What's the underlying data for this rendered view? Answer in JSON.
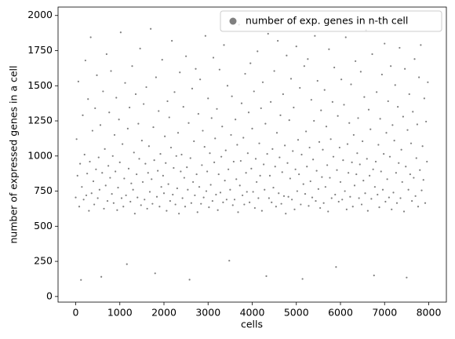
{
  "chart_data": {
    "type": "scatter",
    "xlabel": "cells",
    "ylabel": "number of expressed genes in a cell",
    "xlim": [
      -400,
      8400
    ],
    "ylim": [
      -40,
      2060
    ],
    "xticks": [
      0,
      1000,
      2000,
      3000,
      4000,
      5000,
      6000,
      7000,
      8000
    ],
    "yticks": [
      0,
      250,
      500,
      750,
      1000,
      1250,
      1500,
      1750,
      2000
    ],
    "legend": "upper right",
    "series": [
      {
        "name": "number of exp. genes in n-th cell",
        "color": "#808080",
        "x": [
          0,
          20,
          40,
          60,
          80,
          100,
          120,
          140,
          160,
          180,
          200,
          220,
          240,
          260,
          280,
          300,
          320,
          340,
          360,
          380,
          400,
          420,
          440,
          460,
          480,
          500,
          520,
          540,
          560,
          580,
          600,
          620,
          640,
          660,
          680,
          700,
          720,
          740,
          760,
          780,
          800,
          820,
          840,
          860,
          880,
          900,
          920,
          940,
          960,
          980,
          1000,
          1020,
          1040,
          1060,
          1080,
          1100,
          1120,
          1140,
          1160,
          1180,
          1200,
          1220,
          1240,
          1260,
          1280,
          1300,
          1320,
          1340,
          1360,
          1380,
          1400,
          1420,
          1440,
          1460,
          1480,
          1500,
          1520,
          1540,
          1560,
          1580,
          1600,
          1620,
          1640,
          1660,
          1680,
          1700,
          1720,
          1740,
          1760,
          1780,
          1800,
          1820,
          1840,
          1860,
          1880,
          1900,
          1920,
          1940,
          1960,
          1980,
          2000,
          2020,
          2040,
          2060,
          2080,
          2100,
          2120,
          2140,
          2160,
          2180,
          2200,
          2220,
          2240,
          2260,
          2280,
          2300,
          2320,
          2340,
          2360,
          2380,
          2400,
          2420,
          2440,
          2460,
          2480,
          2500,
          2520,
          2540,
          2560,
          2580,
          2600,
          2620,
          2640,
          2660,
          2680,
          2700,
          2720,
          2740,
          2760,
          2780,
          2800,
          2820,
          2840,
          2860,
          2880,
          2900,
          2920,
          2940,
          2960,
          2980,
          3000,
          3020,
          3040,
          3060,
          3080,
          3100,
          3120,
          3140,
          3160,
          3180,
          3200,
          3220,
          3240,
          3260,
          3280,
          3300,
          3320,
          3340,
          3360,
          3380,
          3400,
          3420,
          3440,
          3460,
          3480,
          3500,
          3520,
          3540,
          3560,
          3580,
          3600,
          3620,
          3640,
          3660,
          3680,
          3700,
          3720,
          3740,
          3760,
          3780,
          3800,
          3820,
          3840,
          3860,
          3880,
          3900,
          3920,
          3940,
          3960,
          3980,
          4000,
          4020,
          4040,
          4060,
          4080,
          4100,
          4120,
          4140,
          4160,
          4180,
          4200,
          4220,
          4240,
          4260,
          4280,
          4300,
          4320,
          4340,
          4360,
          4380,
          4400,
          4420,
          4440,
          4460,
          4480,
          4500,
          4520,
          4540,
          4560,
          4580,
          4600,
          4620,
          4640,
          4660,
          4680,
          4700,
          4720,
          4740,
          4760,
          4780,
          4800,
          4820,
          4840,
          4860,
          4880,
          4900,
          4920,
          4940,
          4960,
          4980,
          5000,
          5020,
          5040,
          5060,
          5080,
          5100,
          5120,
          5140,
          5160,
          5180,
          5200,
          5220,
          5240,
          5260,
          5280,
          5300,
          5320,
          5340,
          5360,
          5380,
          5400,
          5420,
          5440,
          5460,
          5480,
          5500,
          5520,
          5540,
          5560,
          5580,
          5600,
          5620,
          5640,
          5660,
          5680,
          5700,
          5720,
          5740,
          5760,
          5780,
          5800,
          5820,
          5840,
          5860,
          5880,
          5900,
          5920,
          5940,
          5960,
          5980,
          6000,
          6020,
          6040,
          6060,
          6080,
          6100,
          6120,
          6140,
          6160,
          6180,
          6200,
          6220,
          6240,
          6260,
          6280,
          6300,
          6320,
          6340,
          6360,
          6380,
          6400,
          6420,
          6440,
          6460,
          6480,
          6500,
          6520,
          6540,
          6560,
          6580,
          6600,
          6620,
          6640,
          6660,
          6680,
          6700,
          6720,
          6740,
          6760,
          6780,
          6800,
          6820,
          6840,
          6860,
          6880,
          6900,
          6920,
          6940,
          6960,
          6980,
          7000,
          7020,
          7040,
          7060,
          7080,
          7100,
          7120,
          7140,
          7160,
          7180,
          7200,
          7220,
          7240,
          7260,
          7280,
          7300,
          7320,
          7340,
          7360,
          7380,
          7400,
          7420,
          7440,
          7460,
          7480,
          7500,
          7520,
          7540,
          7560,
          7580,
          7600,
          7620,
          7640,
          7660,
          7680,
          7700,
          7720,
          7740,
          7760,
          7780,
          7800,
          7820,
          7840,
          7860,
          7880,
          7900,
          7920,
          7940,
          7960,
          7980
        ],
        "values": [
          705,
          1120,
          860,
          1530,
          640,
          945,
          118,
          780,
          1290,
          690,
          1010,
          1680,
          720,
          875,
          1405,
          610,
          960,
          1845,
          735,
          1180,
          820,
          655,
          1340,
          905,
          1575,
          700,
          990,
          760,
          1220,
          140,
          880,
          1460,
          625,
          1050,
          790,
          1725,
          680,
          930,
          1310,
          845,
          1605,
          730,
          1000,
          665,
          1150,
          890,
          1415,
          615,
          775,
          1260,
          955,
          1880,
          700,
          1085,
          640,
          840,
          1520,
          720,
          230,
          1195,
          910,
          1345,
          675,
          805,
          1640,
          760,
          1025,
          590,
          1440,
          870,
          705,
          1230,
          980,
          1765,
          650,
          1110,
          815,
          1370,
          690,
          945,
          1490,
          625,
          880,
          1070,
          745,
          1905,
          835,
          660,
          1205,
          970,
          165,
          1560,
          710,
          895,
          1320,
          640,
          1015,
          780,
          1685,
          860,
          735,
          1140,
          950,
          610,
          1390,
          800,
          1275,
          680,
          1060,
          1820,
          725,
          915,
          1455,
          655,
          1000,
          770,
          1165,
          590,
          1595,
          890,
          1010,
          700,
          1350,
          845,
          640,
          1710,
          920,
          760,
          1235,
          120,
          985,
          665,
          1480,
          815,
          1105,
          720,
          1620,
          870,
          600,
          1300,
          780,
          1545,
          660,
          935,
          1180,
          705,
          1065,
          1855,
          750,
          890,
          1410,
          635,
          1020,
          795,
          1270,
          680,
          1700,
          955,
          1125,
          725,
          1335,
          615,
          870,
          1615,
          740,
          995,
          1210,
          670,
          1790,
          825,
          1040,
          690,
          1500,
          905,
          255,
          760,
          1150,
          1425,
          650,
          960,
          690,
          1260,
          835,
          1080,
          600,
          1935,
          790,
          965,
          1375,
          720,
          1130,
          655,
          1585,
          880,
          745,
          1020,
          1310,
          670,
          1660,
          910,
          1195,
          745,
          1460,
          630,
          980,
          815,
          1745,
          700,
          1090,
          860,
          1340,
          610,
          1525,
          940,
          760,
          1230,
          145,
          1015,
          1870,
          700,
          860,
          1385,
          670,
          1050,
          775,
          1605,
          925,
          640,
          1165,
          1820,
          735,
          990,
          1290,
          660,
          885,
          1440,
          715,
          1075,
          590,
          1715,
          950,
          710,
          1255,
          840,
          1550,
          690,
          1035,
          1345,
          620,
          905,
          1780,
          750,
          1115,
          870,
          1485,
          655,
          1010,
          125,
          800,
          1640,
          730,
          1175,
          925,
          1690,
          645,
          1060,
          820,
          1400,
          705,
          975,
          1250,
          1855,
          680,
          895,
          1535,
          765,
          1100,
          630,
          1325,
          850,
          1045,
          665,
          1470,
          780,
          1210,
          935,
          605,
          1760,
          845,
          1120,
          700,
          1385,
          995,
          1630,
          725,
          210,
          900,
          1285,
          675,
          1060,
          815,
          1545,
          690,
          970,
          1365,
          750,
          1845,
          620,
          1085,
          880,
          1235,
          710,
          1510,
          955,
          640,
          1150,
          790,
          1675,
          870,
          1020,
          1270,
          700,
          940,
          1600,
          655,
          1105,
          825,
          1420,
          735,
          1895,
          980,
          610,
          1330,
          860,
          1190,
          695,
          1725,
          905,
          150,
          780,
          960,
          1455,
          725,
          1080,
          635,
          1265,
          890,
          1580,
          760,
          1015,
          1800,
          675,
          1165,
          835,
          1390,
          705,
          995,
          1640,
          620,
          1220,
          740,
          1110,
          1505,
          880,
          665,
          1350,
          950,
          1770,
          700,
          1045,
          815,
          1280,
          605,
          1620,
          925,
          135,
          1185,
          760,
          1440,
          870,
          1090,
          680,
          1315,
          845,
          1690,
          715,
          985,
          1225,
          640,
          1560,
          900,
          1790,
          755,
          1070,
          830,
          1410,
          665,
          1245,
          960,
          1525
        ]
      }
    ]
  }
}
